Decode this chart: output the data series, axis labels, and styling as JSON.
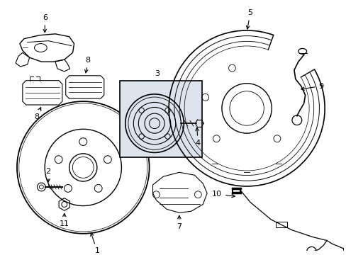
{
  "background_color": "#ffffff",
  "line_color": "#000000",
  "label_color": "#000000",
  "highlight_box_color": "#dde4ee",
  "figsize": [
    4.89,
    3.6
  ],
  "dpi": 100
}
